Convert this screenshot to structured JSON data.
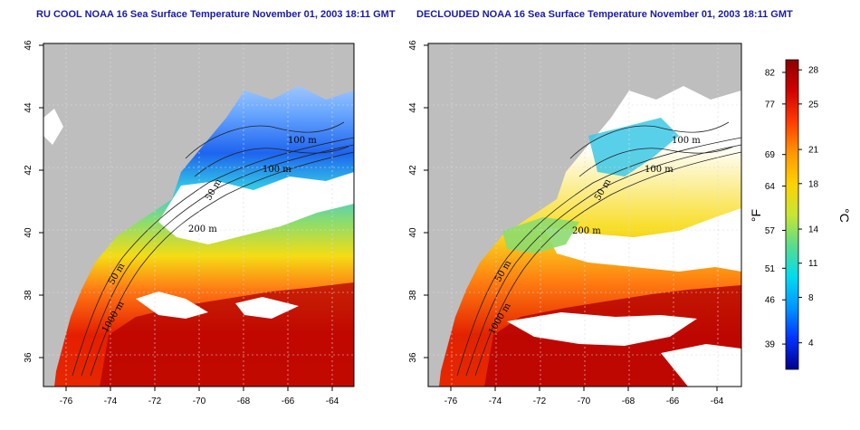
{
  "left_panel": {
    "title": "RU COOL NOAA 16 Sea Surface Temperature November 01, 2003 18:11 GMT",
    "contour_labels": [
      "100 m",
      "100 m",
      "50 m",
      "200 m",
      "50 m",
      "1000 m"
    ]
  },
  "right_panel": {
    "title": "DECLOUDED NOAA 16 Sea Surface Temperature November 01, 2003 18:11 GMT",
    "contour_labels": [
      "100 m",
      "100 m",
      "50 m",
      "200 m",
      "50 m",
      "1000 m"
    ]
  },
  "map_axes": {
    "lat_ticks": [
      "46",
      "44",
      "42",
      "40",
      "38",
      "36"
    ],
    "lon_ticks": [
      "-76",
      "-74",
      "-72",
      "-70",
      "-68",
      "-66",
      "-64"
    ]
  },
  "colorbar": {
    "fahrenheit_ticks": [
      "82",
      "77",
      "69",
      "64",
      "57",
      "51",
      "46",
      "39"
    ],
    "celsius_ticks": [
      "28",
      "25",
      "21",
      "18",
      "14",
      "11",
      "8",
      "4"
    ],
    "fahrenheit_unit": "°F",
    "celsius_unit": "°C",
    "colors": [
      "#00008c",
      "#0032ff",
      "#0096ff",
      "#00dcf0",
      "#5adc8c",
      "#c8e632",
      "#ffd200",
      "#ff9600",
      "#ff3c00",
      "#d20000",
      "#8c0000"
    ]
  },
  "colors": {
    "land": "#bebebe",
    "cloud": "#ffffff",
    "contour": "#222222",
    "grid": "#c8c8c8",
    "title": "#1a1aa8"
  }
}
